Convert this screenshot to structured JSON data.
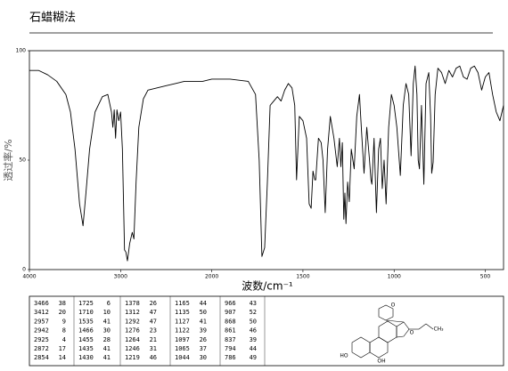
{
  "header": {
    "title": "石蜡糊法"
  },
  "chart_data": {
    "type": "line",
    "color": "#000000",
    "x_label": "波数/cm⁻¹",
    "y_label": "透过率/%",
    "xlim": [
      4000,
      400
    ],
    "ylim": [
      0,
      100
    ],
    "xticks": [
      4000,
      3000,
      2000,
      1500,
      1000,
      500
    ],
    "yticks": [
      0,
      50,
      100
    ],
    "x": [
      4000,
      3900,
      3800,
      3700,
      3600,
      3550,
      3500,
      3450,
      3412,
      3380,
      3340,
      3280,
      3200,
      3140,
      3100,
      3085,
      3070,
      3055,
      3040,
      3020,
      3000,
      2980,
      2957,
      2942,
      2925,
      2900,
      2872,
      2854,
      2830,
      2800,
      2750,
      2700,
      2600,
      2500,
      2400,
      2300,
      2200,
      2100,
      2000,
      1900,
      1800,
      1760,
      1740,
      1725,
      1710,
      1695,
      1680,
      1660,
      1640,
      1620,
      1600,
      1580,
      1560,
      1545,
      1535,
      1520,
      1500,
      1480,
      1466,
      1455,
      1445,
      1435,
      1430,
      1415,
      1400,
      1390,
      1378,
      1365,
      1350,
      1330,
      1312,
      1300,
      1292,
      1284,
      1276,
      1270,
      1264,
      1255,
      1246,
      1235,
      1219,
      1205,
      1190,
      1180,
      1165,
      1150,
      1135,
      1127,
      1122,
      1110,
      1097,
      1085,
      1075,
      1065,
      1055,
      1044,
      1030,
      1015,
      1000,
      985,
      966,
      950,
      935,
      920,
      907,
      895,
      885,
      875,
      868,
      861,
      850,
      837,
      825,
      810,
      800,
      794,
      786,
      775,
      760,
      740,
      720,
      700,
      680,
      660,
      640,
      620,
      600,
      580,
      560,
      540,
      520,
      500,
      480,
      460,
      440,
      420,
      400
    ],
    "values": [
      91,
      91,
      89,
      86,
      80,
      72,
      55,
      30,
      20,
      35,
      55,
      72,
      79,
      80,
      72,
      65,
      73,
      60,
      73,
      68,
      72,
      55,
      9,
      8,
      4,
      12,
      17,
      14,
      40,
      65,
      78,
      82,
      83,
      84,
      85,
      86,
      86,
      86,
      87,
      87,
      86,
      80,
      50,
      6,
      10,
      40,
      75,
      77,
      79,
      77,
      82,
      85,
      83,
      75,
      41,
      70,
      68,
      60,
      30,
      28,
      45,
      41,
      41,
      60,
      58,
      50,
      26,
      55,
      70,
      60,
      47,
      60,
      47,
      58,
      23,
      35,
      21,
      40,
      31,
      55,
      46,
      70,
      80,
      65,
      44,
      65,
      50,
      41,
      39,
      60,
      26,
      55,
      60,
      37,
      50,
      30,
      65,
      80,
      75,
      65,
      43,
      75,
      85,
      80,
      52,
      85,
      93,
      80,
      50,
      46,
      75,
      39,
      85,
      90,
      70,
      44,
      49,
      80,
      92,
      90,
      85,
      91,
      88,
      92,
      93,
      88,
      87,
      92,
      93,
      90,
      82,
      88,
      90,
      80,
      72,
      68,
      75
    ]
  },
  "peak_table": {
    "columns": [
      [
        [
          3466,
          38
        ],
        [
          3412,
          20
        ],
        [
          2957,
          9
        ],
        [
          2942,
          8
        ],
        [
          2925,
          4
        ],
        [
          2872,
          17
        ],
        [
          2854,
          14
        ]
      ],
      [
        [
          1725,
          6
        ],
        [
          1710,
          10
        ],
        [
          1535,
          41
        ],
        [
          1466,
          30
        ],
        [
          1455,
          28
        ],
        [
          1435,
          41
        ],
        [
          1430,
          41
        ]
      ],
      [
        [
          1378,
          26
        ],
        [
          1312,
          47
        ],
        [
          1292,
          47
        ],
        [
          1276,
          23
        ],
        [
          1264,
          21
        ],
        [
          1246,
          31
        ],
        [
          1219,
          46
        ]
      ],
      [
        [
          1165,
          44
        ],
        [
          1135,
          50
        ],
        [
          1127,
          41
        ],
        [
          1122,
          39
        ],
        [
          1097,
          26
        ],
        [
          1065,
          37
        ],
        [
          1044,
          30
        ]
      ],
      [
        [
          966,
          43
        ],
        [
          907,
          52
        ],
        [
          868,
          50
        ],
        [
          861,
          46
        ],
        [
          837,
          39
        ],
        [
          794,
          44
        ],
        [
          786,
          49
        ]
      ]
    ]
  },
  "structure_labels": [
    "HO",
    "OH",
    "O",
    "O",
    "CH₃"
  ]
}
